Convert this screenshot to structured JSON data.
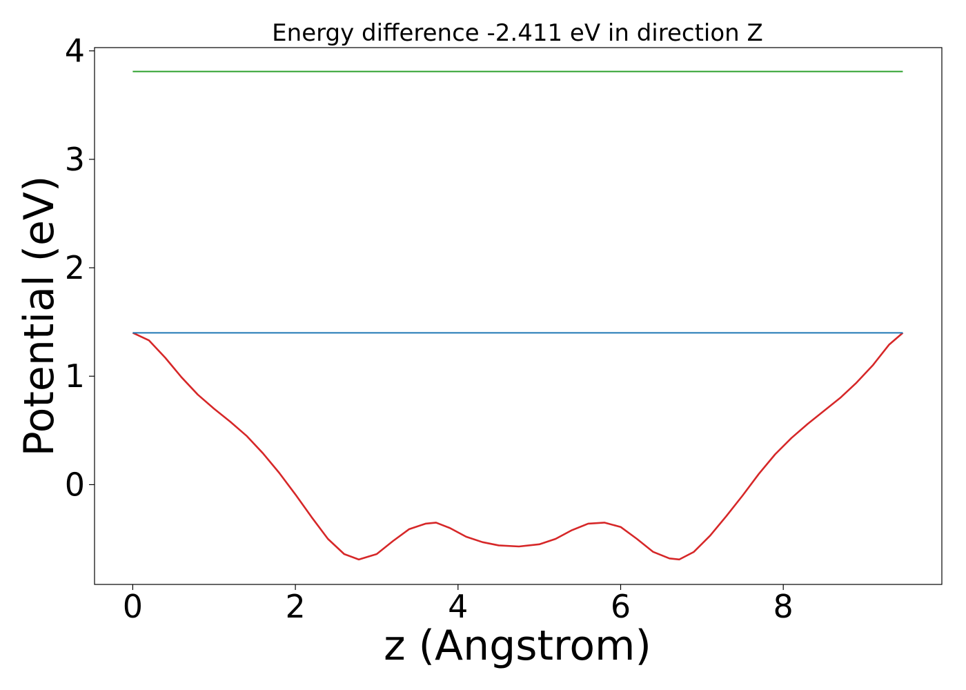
{
  "chart_data": {
    "type": "line",
    "title": "Energy difference -2.411 eV in direction Z",
    "xlabel": "z (Angstrom)",
    "ylabel": "Potential (eV)",
    "xlim": [
      -0.47,
      9.95
    ],
    "ylim": [
      -0.92,
      4.03
    ],
    "xticks": [
      0,
      2,
      4,
      6,
      8
    ],
    "yticks": [
      0,
      1,
      2,
      3,
      4
    ],
    "xtick_labels": [
      "0",
      "2",
      "4",
      "6",
      "8"
    ],
    "ytick_labels": [
      "0",
      "1",
      "2",
      "3",
      "4"
    ],
    "grid": false,
    "legend": false,
    "series": [
      {
        "color": "#d62728",
        "x": [
          0,
          0.2,
          0.4,
          0.6,
          0.8,
          1.0,
          1.2,
          1.4,
          1.6,
          1.8,
          2.0,
          2.2,
          2.4,
          2.6,
          2.78,
          3.0,
          3.2,
          3.4,
          3.6,
          3.73,
          3.9,
          4.1,
          4.3,
          4.5,
          4.75,
          5.0,
          5.2,
          5.4,
          5.6,
          5.8,
          6.0,
          6.2,
          6.4,
          6.6,
          6.72,
          6.9,
          7.1,
          7.3,
          7.5,
          7.7,
          7.9,
          8.1,
          8.3,
          8.5,
          8.7,
          8.9,
          9.1,
          9.3,
          9.47
        ],
        "y": [
          1.4,
          1.33,
          1.17,
          0.99,
          0.83,
          0.7,
          0.58,
          0.45,
          0.29,
          0.11,
          -0.09,
          -0.3,
          -0.5,
          -0.64,
          -0.69,
          -0.64,
          -0.52,
          -0.41,
          -0.36,
          -0.35,
          -0.4,
          -0.48,
          -0.53,
          -0.56,
          -0.57,
          -0.55,
          -0.5,
          -0.42,
          -0.36,
          -0.35,
          -0.39,
          -0.5,
          -0.62,
          -0.68,
          -0.69,
          -0.62,
          -0.47,
          -0.29,
          -0.1,
          0.1,
          0.28,
          0.43,
          0.56,
          0.68,
          0.8,
          0.94,
          1.1,
          1.29,
          1.4
        ]
      },
      {
        "color": "#1f77b4",
        "x": [
          0,
          9.47
        ],
        "y": [
          1.4,
          1.4
        ]
      },
      {
        "color": "#2ca02c",
        "x": [
          0,
          9.47
        ],
        "y": [
          3.81,
          3.81
        ]
      }
    ]
  }
}
